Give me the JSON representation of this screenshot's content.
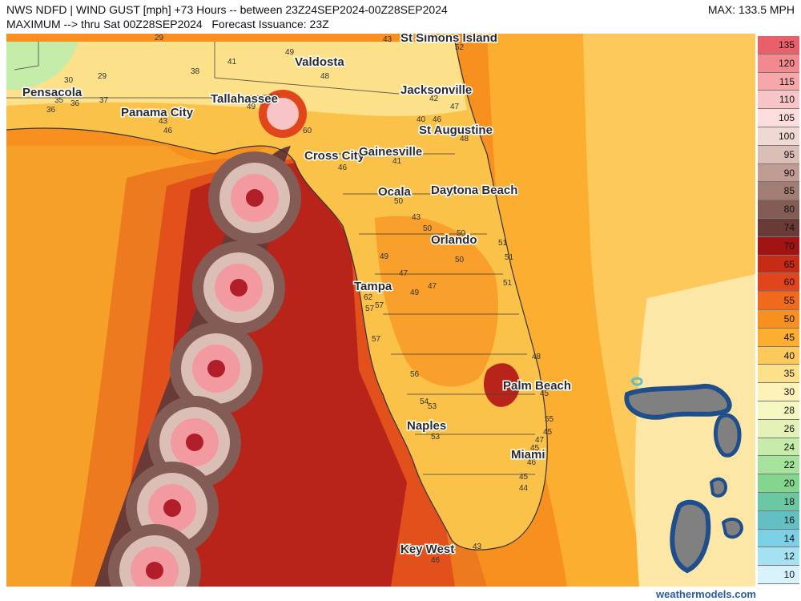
{
  "header": {
    "line1": "NWS NDFD | WIND GUST [mph] +73 Hours -- between 23Z24SEP2024-00Z28SEP2024",
    "line2": "MAXIMUM --> thru Sat 00Z28SEP2024   Forecast Issuance: 23Z",
    "max": "MAX: 133.5 MPH"
  },
  "footer": "weathermodels.com",
  "cities": [
    {
      "name": "St Simons Island"
    },
    {
      "name": "Valdosta"
    },
    {
      "name": "Pensacola"
    },
    {
      "name": "Panama City"
    },
    {
      "name": "Tallahassee"
    },
    {
      "name": "Jacksonville"
    },
    {
      "name": "St Augustine"
    },
    {
      "name": "Cross City"
    },
    {
      "name": "Gainesville"
    },
    {
      "name": "Ocala"
    },
    {
      "name": "Daytona Beach"
    },
    {
      "name": "Orlando"
    },
    {
      "name": "Tampa"
    },
    {
      "name": "Palm Beach"
    },
    {
      "name": "Naples"
    },
    {
      "name": "Miami"
    },
    {
      "name": "Key West"
    }
  ],
  "station_values": [
    "29",
    "43",
    "52",
    "49",
    "41",
    "38",
    "30",
    "29",
    "35",
    "36",
    "37",
    "36",
    "46",
    "43",
    "48",
    "49",
    "60",
    "42",
    "47",
    "40",
    "46",
    "48",
    "46",
    "41",
    "50",
    "43",
    "50",
    "50",
    "51",
    "50",
    "51",
    "49",
    "47",
    "49",
    "47",
    "62",
    "57",
    "57",
    "57",
    "56",
    "54",
    "53",
    "53",
    "48",
    "45",
    "55",
    "45",
    "47",
    "45",
    "46",
    "45",
    "44",
    "43",
    "46",
    "51"
  ],
  "legend": {
    "labels": [
      "135",
      "120",
      "115",
      "110",
      "105",
      "100",
      "95",
      "90",
      "85",
      "80",
      "74",
      "70",
      "65",
      "60",
      "55",
      "50",
      "45",
      "40",
      "35",
      "30",
      "28",
      "26",
      "24",
      "22",
      "20",
      "18",
      "16",
      "14",
      "12",
      "10"
    ],
    "colors": [
      "#e9606a",
      "#f08a8f",
      "#f5a7aa",
      "#f9c4c6",
      "#fcdcdc",
      "#efd9d2",
      "#dbbfb6",
      "#c19c92",
      "#a27d73",
      "#835d55",
      "#6a3b36",
      "#a21414",
      "#c72b16",
      "#e0451b",
      "#ef6a1d",
      "#f7901f",
      "#fbae2f",
      "#fdc95a",
      "#fde08a",
      "#fdf2b8",
      "#f5f7c0",
      "#e3f3b8",
      "#c6ecaa",
      "#a5e39c",
      "#84d68f",
      "#6cc8a3",
      "#63bfc4",
      "#7ccfe4",
      "#a4e1f2",
      "#d8f1fa"
    ]
  },
  "colors": {
    "gulf_outer": "#f6a02a",
    "gulf_mid": "#ee7a20",
    "gulf_inner": "#e2511c",
    "gulf_core": "#b8231a",
    "land_south": "#fbc24a",
    "land_north": "#fde08a",
    "bahamas_shelf": "#fde7a6",
    "eye_ring": "#6a3b36",
    "eye_pink": "#f29aa0",
    "eye_core": "#b01e2a"
  }
}
